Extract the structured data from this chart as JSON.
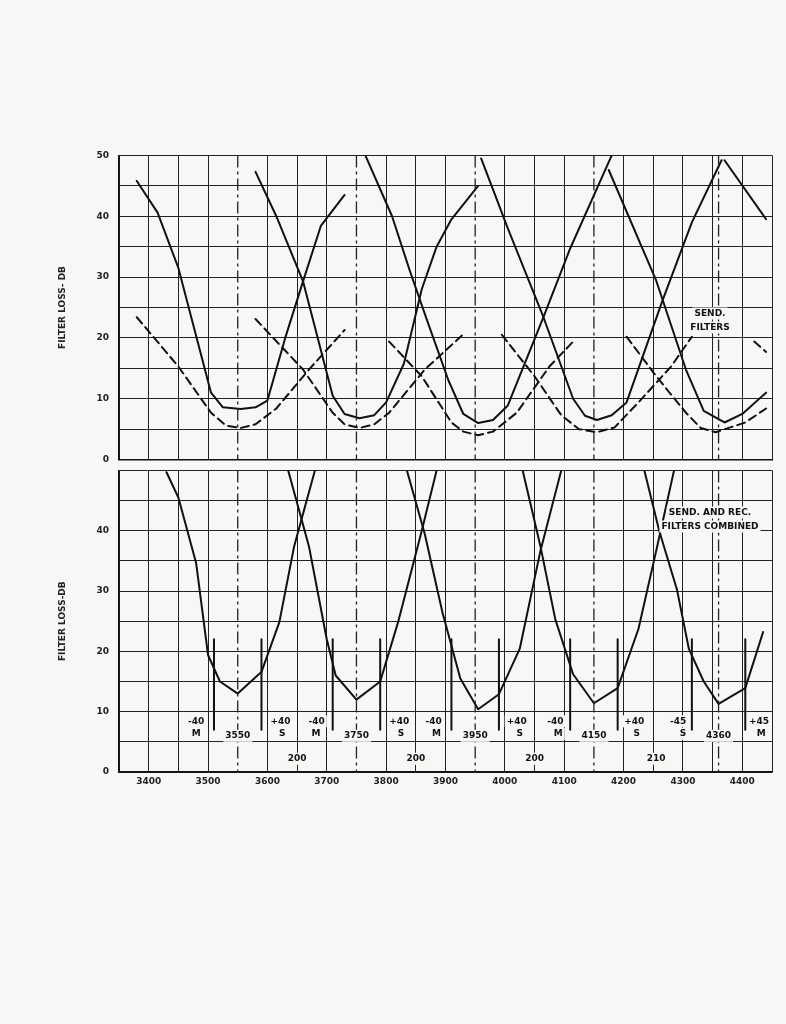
{
  "chart_data": [
    {
      "type": "line",
      "ylabel": "FILTER LOSS- DB",
      "xlim": [
        3350,
        4450
      ],
      "ylim": [
        0,
        50
      ],
      "xticks": [
        {
          "value": 3350,
          "label": null
        },
        {
          "value": 3400,
          "label": null
        },
        {
          "value": 3450,
          "label": null
        },
        {
          "value": 3500,
          "label": null
        },
        {
          "value": 3600,
          "label": null
        },
        {
          "value": 3650,
          "label": null
        },
        {
          "value": 3700,
          "label": null
        },
        {
          "value": 3800,
          "label": null
        },
        {
          "value": 3850,
          "label": null
        },
        {
          "value": 3900,
          "label": null
        },
        {
          "value": 4000,
          "label": null
        },
        {
          "value": 4050,
          "label": null
        },
        {
          "value": 4100,
          "label": null
        },
        {
          "value": 4200,
          "label": null
        },
        {
          "value": 4250,
          "label": null
        },
        {
          "value": 4300,
          "label": null
        },
        {
          "value": 4350,
          "label": null
        },
        {
          "value": 4400,
          "label": null
        },
        {
          "value": 4450,
          "label": null
        }
      ],
      "yticks": [
        0,
        {
          "value": 5,
          "label": null
        },
        10,
        {
          "value": 15,
          "label": null
        },
        20,
        {
          "value": 25,
          "label": null
        },
        30,
        {
          "value": 35,
          "label": null
        },
        40,
        {
          "value": 45,
          "label": null
        },
        50
      ],
      "tick_labels": "y",
      "grid": true,
      "legend": false,
      "marker": "none",
      "series": [
        {
          "color": "#111111",
          "line_style": "solid",
          "x": [
            3380,
            3415,
            3450,
            3505,
            3525,
            3555,
            3580,
            3600,
            3630,
            3660,
            3690,
            3730
          ],
          "values": [
            45.8,
            40.6,
            31.5,
            11,
            8.6,
            8.3,
            8.6,
            9.7,
            20,
            29.3,
            38.4,
            43.5
          ]
        },
        {
          "color": "#111111",
          "line_style": "solid",
          "x": [
            3580,
            3615,
            3660,
            3690,
            3710,
            3730,
            3755,
            3780,
            3800,
            3830,
            3860,
            3885,
            3910,
            3955
          ],
          "values": [
            47.3,
            40,
            29.3,
            18,
            10.5,
            7.5,
            6.8,
            7.3,
            9.4,
            15.8,
            28,
            35,
            39.5,
            45
          ]
        },
        {
          "color": "#111111",
          "line_style": "solid",
          "x": [
            3765,
            3810,
            3840,
            3870,
            3905,
            3930,
            3955,
            3980,
            4005,
            4065,
            4110,
            4180
          ],
          "values": [
            50,
            40,
            31,
            22.6,
            13,
            7.5,
            6,
            6.5,
            8.9,
            23.4,
            34.7,
            50
          ]
        },
        {
          "color": "#111111",
          "line_style": "solid",
          "x": [
            3960,
            4005,
            4065,
            4115,
            4135,
            4155,
            4180,
            4205,
            4265,
            4315,
            4365
          ],
          "values": [
            49.5,
            38,
            23.4,
            10,
            7.2,
            6.5,
            7.3,
            9.4,
            26,
            39,
            49.2
          ]
        },
        {
          "color": "#111111",
          "line_style": "solid",
          "x": [
            4175,
            4255,
            4305,
            4335,
            4370,
            4400,
            4440
          ],
          "values": [
            47.6,
            29.4,
            14.8,
            8,
            6.1,
            7.5,
            11
          ]
        },
        {
          "color": "#111111",
          "line_style": "solid",
          "x": [
            4370,
            4440
          ],
          "values": [
            49.2,
            39.5
          ]
        },
        {
          "color": "#111111",
          "line_style": "dashed",
          "x": [
            3380,
            3450,
            3505,
            3530,
            3555,
            3580,
            3615,
            3670,
            3730
          ],
          "values": [
            23.4,
            15.3,
            7.7,
            5.6,
            5.2,
            5.8,
            8.4,
            14.8,
            21.3
          ]
        },
        {
          "color": "#111111",
          "line_style": "dashed",
          "x": [
            3580,
            3660,
            3710,
            3730,
            3755,
            3780,
            3805,
            3865,
            3930
          ],
          "values": [
            23.1,
            14.8,
            7.7,
            5.8,
            5.2,
            5.8,
            7.7,
            14.8,
            20.6
          ]
        },
        {
          "color": "#111111",
          "line_style": "dashed",
          "x": [
            3805,
            3860,
            3910,
            3930,
            3955,
            3980,
            4020,
            4075,
            4115
          ],
          "values": [
            19.4,
            13.7,
            6.1,
            4.6,
            4,
            4.6,
            7.7,
            15.3,
            19.4
          ]
        },
        {
          "color": "#111111",
          "line_style": "dashed",
          "x": [
            3995,
            4050,
            4095,
            4125,
            4155,
            4185,
            4225,
            4280,
            4315
          ],
          "values": [
            20.5,
            13.7,
            7.3,
            5,
            4.5,
            5.3,
            9.4,
            15.3,
            20.2
          ]
        },
        {
          "color": "#111111",
          "line_style": "dashed",
          "x": [
            4205,
            4255,
            4305,
            4330,
            4355,
            4405,
            4440
          ],
          "values": [
            20.2,
            13.7,
            7.7,
            5.2,
            4.5,
            6.1,
            8.4
          ]
        },
        {
          "color": "#111111",
          "line_style": "dashed",
          "x": [
            4420,
            4440
          ],
          "values": [
            19.4,
            17.7
          ]
        }
      ],
      "ref_lines": [
        {
          "axis": "x",
          "value": 3550,
          "line_style": "dashed"
        },
        {
          "axis": "x",
          "value": 3750,
          "line_style": "dashed"
        },
        {
          "axis": "x",
          "value": 3950,
          "line_style": "dashed"
        },
        {
          "axis": "x",
          "value": 4150,
          "line_style": "dashed"
        },
        {
          "axis": "x",
          "value": 4360,
          "line_style": "dashed"
        }
      ],
      "annotations": [
        "SEND.",
        "FILTERS"
      ]
    },
    {
      "type": "line",
      "ylabel": "FILTER LOSS-DB",
      "xlim": [
        3350,
        4450
      ],
      "ylim": [
        0,
        50
      ],
      "xticks": [
        {
          "value": 3350,
          "label": null
        },
        3400,
        {
          "value": 3450,
          "label": null
        },
        3500,
        3600,
        {
          "value": 3650,
          "label": null
        },
        3700,
        3800,
        {
          "value": 3850,
          "label": null
        },
        3900,
        4000,
        {
          "value": 4050,
          "label": null
        },
        4100,
        4200,
        {
          "value": 4250,
          "label": null
        },
        4300,
        {
          "value": 4350,
          "label": null
        },
        4400,
        {
          "value": 4450,
          "label": null
        }
      ],
      "yticks": [
        0,
        {
          "value": 5,
          "label": null
        },
        10,
        {
          "value": 15,
          "label": null
        },
        20,
        {
          "value": 25,
          "label": null
        },
        30,
        {
          "value": 35,
          "label": null
        },
        40,
        {
          "value": 45,
          "label": null
        },
        {
          "value": 50,
          "label": null
        }
      ],
      "grid": true,
      "legend": false,
      "marker": "none",
      "line_style": "solid",
      "series": [
        {
          "color": "#111111",
          "x": [
            3430,
            3450,
            3480,
            3500,
            3520,
            3550,
            3590,
            3620,
            3645,
            3680
          ],
          "values": [
            49.7,
            45.5,
            34.6,
            19.4,
            15,
            13,
            16.6,
            24.8,
            37.4,
            50
          ]
        },
        {
          "color": "#111111",
          "x": [
            3635,
            3670,
            3700,
            3715,
            3750,
            3790,
            3820,
            3860,
            3885
          ],
          "values": [
            50,
            37.4,
            22,
            16,
            12,
            15,
            24.8,
            40,
            50
          ]
        },
        {
          "color": "#111111",
          "x": [
            3835,
            3865,
            3895,
            3925,
            3955,
            3990,
            4025,
            4060,
            4095
          ],
          "values": [
            50,
            39.5,
            26.4,
            15.5,
            10.4,
            12.9,
            20.4,
            36.7,
            50
          ]
        },
        {
          "color": "#111111",
          "x": [
            4030,
            4060,
            4085,
            4115,
            4150,
            4190,
            4225,
            4255,
            4285
          ],
          "values": [
            50,
            37.4,
            25.3,
            16.2,
            11.4,
            13.9,
            23.7,
            36.7,
            50
          ]
        },
        {
          "color": "#111111",
          "x": [
            4235,
            4260,
            4290,
            4310,
            4335,
            4360,
            4405,
            4435
          ],
          "values": [
            50,
            40,
            30.2,
            20.4,
            15,
            11.3,
            13.9,
            23.2
          ]
        },
        {
          "color": "#111111",
          "x": [
            3510,
            3510
          ],
          "values": [
            22,
            7
          ]
        },
        {
          "color": "#111111",
          "x": [
            3590,
            3590
          ],
          "values": [
            22,
            7
          ]
        },
        {
          "color": "#111111",
          "x": [
            3710,
            3710
          ],
          "values": [
            22,
            7
          ]
        },
        {
          "color": "#111111",
          "x": [
            3790,
            3790
          ],
          "values": [
            22,
            7
          ]
        },
        {
          "color": "#111111",
          "x": [
            3910,
            3910
          ],
          "values": [
            22,
            7
          ]
        },
        {
          "color": "#111111",
          "x": [
            3990,
            3990
          ],
          "values": [
            22,
            7
          ]
        },
        {
          "color": "#111111",
          "x": [
            4110,
            4110
          ],
          "values": [
            22,
            7
          ]
        },
        {
          "color": "#111111",
          "x": [
            4190,
            4190
          ],
          "values": [
            22,
            7
          ]
        },
        {
          "color": "#111111",
          "x": [
            4315,
            4315
          ],
          "values": [
            22,
            7
          ]
        },
        {
          "color": "#111111",
          "x": [
            4405,
            4405
          ],
          "values": [
            22,
            7
          ]
        }
      ],
      "ref_lines": [
        {
          "axis": "x",
          "value": 3550,
          "line_style": "dashed"
        },
        {
          "axis": "x",
          "value": 3750,
          "line_style": "dashed"
        },
        {
          "axis": "x",
          "value": 3950,
          "line_style": "dashed"
        },
        {
          "axis": "x",
          "value": 4150,
          "line_style": "dashed"
        },
        {
          "axis": "x",
          "value": 4360,
          "line_style": "dashed"
        }
      ],
      "annotations": [
        "SEND. AND REC.",
        "FILTERS COMBINED",
        {
          "text": "-40",
          "x": 3480,
          "y": 8.4
        },
        {
          "text": "M",
          "x": 3480,
          "y": 6.3
        },
        {
          "text": "3550",
          "x": 3550,
          "y": 6
        },
        {
          "text": "+40",
          "x": 3622,
          "y": 8.4
        },
        {
          "text": "S",
          "x": 3625,
          "y": 6.3
        },
        {
          "text": "-40",
          "x": 3683,
          "y": 8.4
        },
        {
          "text": "M",
          "x": 3682,
          "y": 6.3
        },
        {
          "text": "3750",
          "x": 3750,
          "y": 6
        },
        {
          "text": "+40",
          "x": 3822,
          "y": 8.4
        },
        {
          "text": "S",
          "x": 3825,
          "y": 6.3
        },
        {
          "text": "-40",
          "x": 3880,
          "y": 8.4
        },
        {
          "text": "M",
          "x": 3885,
          "y": 6.3
        },
        {
          "text": "3950",
          "x": 3950,
          "y": 6
        },
        {
          "text": "+40",
          "x": 4020,
          "y": 8.4
        },
        {
          "text": "S",
          "x": 4025,
          "y": 6.3
        },
        {
          "text": "-40",
          "x": 4085,
          "y": 8.4
        },
        {
          "text": "M",
          "x": 4090,
          "y": 6.3
        },
        {
          "text": "4150",
          "x": 4150,
          "y": 6
        },
        {
          "text": "+40",
          "x": 4218,
          "y": 8.4
        },
        {
          "text": "S",
          "x": 4222,
          "y": 6.3
        },
        {
          "text": "-45",
          "x": 4292,
          "y": 8.4
        },
        {
          "text": "S",
          "x": 4300,
          "y": 6.3
        },
        {
          "text": "4360",
          "x": 4360,
          "y": 6
        },
        {
          "text": "+45",
          "x": 4428,
          "y": 8.4
        },
        {
          "text": "M",
          "x": 4432,
          "y": 6.3
        },
        {
          "text": "200",
          "x": 3650,
          "y": 2.2
        },
        {
          "text": "200",
          "x": 3850,
          "y": 2.2
        },
        {
          "text": "200",
          "x": 4050,
          "y": 2.2
        },
        {
          "text": "210",
          "x": 4255,
          "y": 2.2
        }
      ]
    }
  ]
}
